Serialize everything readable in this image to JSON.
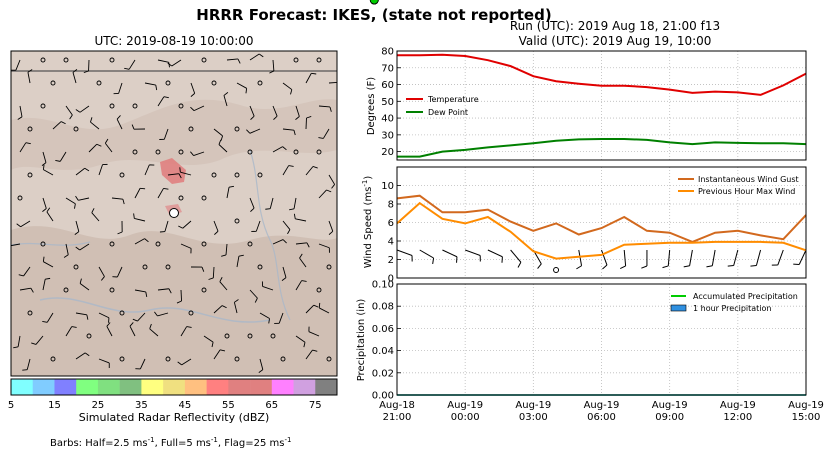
{
  "figure": {
    "title": "HRRR Forecast: IKES, (state not reported)",
    "run_line": "Run (UTC): 2019 Aug 18, 21:00 f13",
    "valid_line": "Valid (UTC): 2019 Aug 19, 10:00",
    "barbs_prefix": "Barbs: Half=2.5 ms",
    "barbs_mid1": ", Full=5 ms",
    "barbs_mid2": ", Flag=25 ms",
    "barbs_sup": "-1"
  },
  "map": {
    "title": "UTC: 2019-08-19 10:00:00",
    "colorbar_label": "Simulated Radar Reflectivity (dBZ)",
    "colorbar_ticks": [
      "5",
      "15",
      "25",
      "35",
      "45",
      "55",
      "65",
      "75"
    ],
    "colorbar_colors": [
      "#80ffff",
      "#80ccff",
      "#8080ff",
      "#80ff80",
      "#80e080",
      "#80c080",
      "#ffff80",
      "#f0e080",
      "#ffc080",
      "#ff8080",
      "#e08080",
      "#e08080",
      "#ff80ff",
      "#d0a0e0",
      "#808080"
    ],
    "station_marker": "white-circle"
  },
  "chart_data": [
    {
      "type": "line",
      "ylabel": "Degrees (F)",
      "ylim": [
        15,
        80
      ],
      "yticks": [
        "20",
        "30",
        "40",
        "50",
        "60",
        "70",
        "80"
      ],
      "grid": true,
      "legend_position": "middle-left",
      "x": [
        "2019-08-18 21:00",
        "22:00",
        "23:00",
        "2019-08-19 00:00",
        "01:00",
        "02:00",
        "03:00",
        "04:00",
        "05:00",
        "06:00",
        "07:00",
        "08:00",
        "09:00",
        "10:00",
        "11:00",
        "12:00",
        "13:00",
        "14:00",
        "15:00"
      ],
      "series": [
        {
          "name": "Temperature",
          "color": "#e00000",
          "values": [
            77.5,
            77.5,
            77.8,
            77.0,
            74.5,
            71.0,
            65.0,
            62.0,
            60.5,
            59.3,
            59.3,
            58.5,
            57.0,
            55.0,
            55.8,
            55.3,
            53.8,
            59.5,
            66.5
          ]
        },
        {
          "name": "Dew Point",
          "color": "#008000",
          "values": [
            17.0,
            17.0,
            20.0,
            21.0,
            22.5,
            23.7,
            25.0,
            26.5,
            27.3,
            27.5,
            27.5,
            27.0,
            25.5,
            24.5,
            25.5,
            25.2,
            25.0,
            25.0,
            24.5
          ]
        }
      ],
      "highlight_x": "2019-08-19 10:00"
    },
    {
      "type": "line",
      "ylabel": "Wind Speed (ms",
      "ylabel_sup": "-1",
      "ylabel_end": ")",
      "ylim": [
        0,
        12
      ],
      "yticks": [
        "0",
        "2",
        "4",
        "6",
        "8",
        "10"
      ],
      "grid": true,
      "legend_position": "top-right",
      "x": [
        "2019-08-18 21:00",
        "22:00",
        "23:00",
        "2019-08-19 00:00",
        "01:00",
        "02:00",
        "03:00",
        "04:00",
        "05:00",
        "06:00",
        "07:00",
        "08:00",
        "09:00",
        "10:00",
        "11:00",
        "12:00",
        "13:00",
        "14:00",
        "15:00"
      ],
      "series": [
        {
          "name": "Instantaneous Wind Gust",
          "color": "#d2691e",
          "values": [
            8.6,
            8.9,
            7.1,
            7.1,
            7.4,
            6.1,
            5.1,
            5.9,
            4.7,
            5.4,
            6.6,
            5.1,
            4.9,
            3.9,
            4.9,
            5.1,
            4.6,
            4.2,
            6.8
          ]
        },
        {
          "name": "Previous Hour Max Wind",
          "color": "#ff8c00",
          "values": [
            5.9,
            8.1,
            6.4,
            5.9,
            6.6,
            5.0,
            2.9,
            2.1,
            2.3,
            2.5,
            3.6,
            3.7,
            3.8,
            3.8,
            3.9,
            3.9,
            3.9,
            3.8,
            3.0
          ]
        }
      ],
      "highlight_x": "2019-08-19 10:00"
    },
    {
      "type": "bar",
      "ylabel": "Precipitation (in)",
      "ylim": [
        0,
        0.1
      ],
      "yticks": [
        "0.00",
        "0.02",
        "0.04",
        "0.06",
        "0.08",
        "0.10"
      ],
      "grid": true,
      "legend_position": "top-right",
      "x_tick_labels": [
        [
          "Aug-18",
          "21:00"
        ],
        [
          "Aug-19",
          "00:00"
        ],
        [
          "Aug-19",
          "03:00"
        ],
        [
          "Aug-19",
          "06:00"
        ],
        [
          "Aug-19",
          "09:00"
        ],
        [
          "Aug-19",
          "12:00"
        ],
        [
          "Aug-19",
          "15:00"
        ]
      ],
      "series": [
        {
          "name": "Accumulated Precipitation",
          "color": "#00cc00",
          "values": [
            0,
            0,
            0,
            0,
            0,
            0,
            0,
            0,
            0,
            0,
            0,
            0,
            0,
            0,
            0,
            0,
            0,
            0,
            0
          ]
        },
        {
          "name": "1 hour Precipitation",
          "color": "#3090e0",
          "values": [
            0,
            0,
            0,
            0,
            0,
            0,
            0,
            0,
            0,
            0,
            0,
            0,
            0,
            0,
            0,
            0,
            0,
            0,
            0
          ]
        }
      ],
      "highlight_x": "2019-08-19 10:00"
    }
  ]
}
